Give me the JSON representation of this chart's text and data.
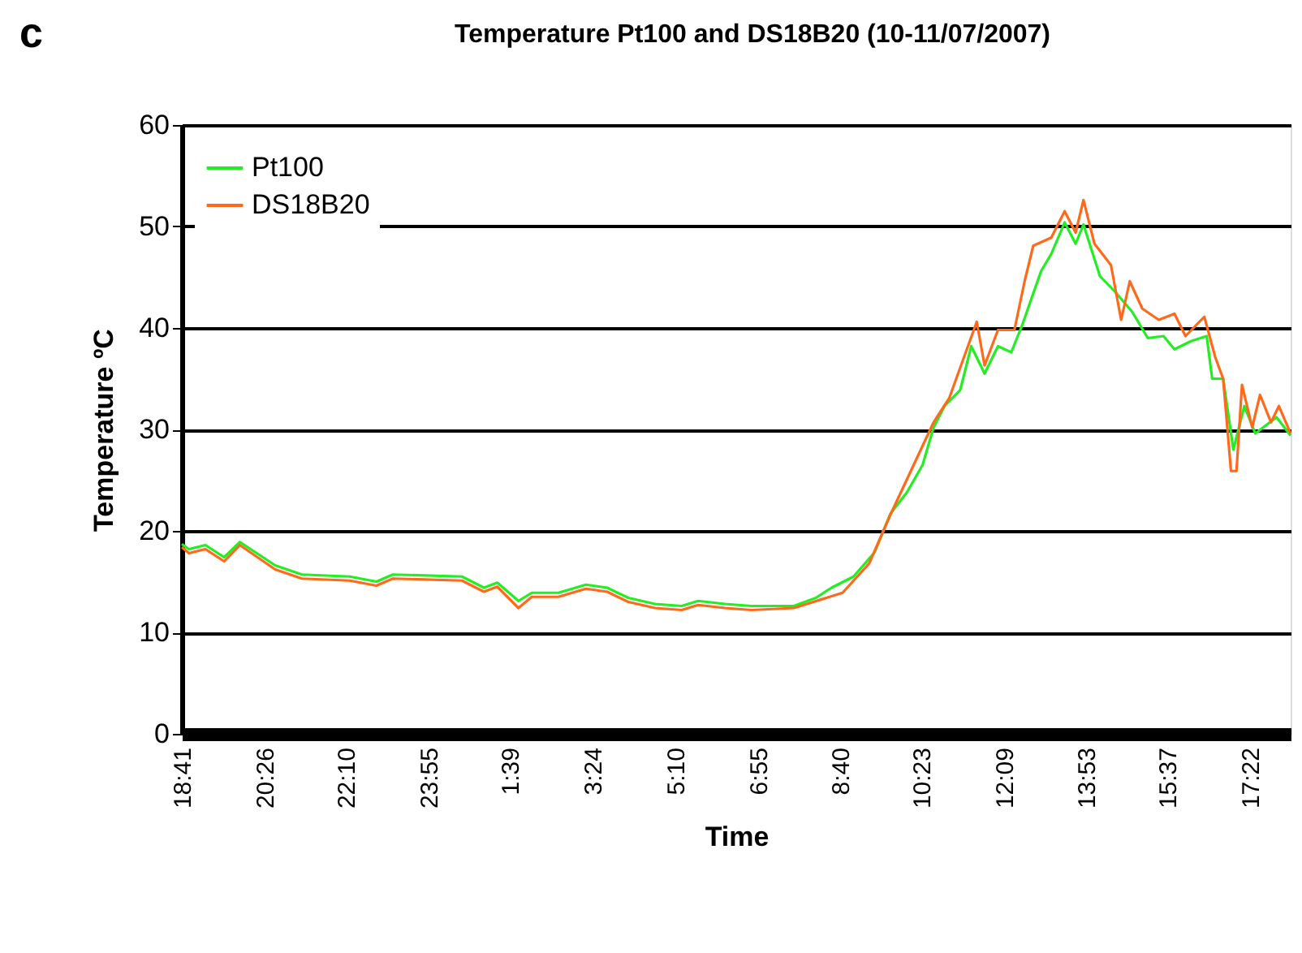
{
  "chart_data": {
    "type": "line",
    "title": "Temperature Pt100 and DS18B20 (10-11/07/2007)",
    "xlabel": "Time",
    "ylabel": "Temperature ºC",
    "annotations": [
      "c"
    ],
    "xlim": [
      "2007-07-10T18:41",
      "2007-07-11T18:14"
    ],
    "ylim": [
      0,
      60
    ],
    "yticks": [
      0,
      10,
      20,
      30,
      40,
      50,
      60
    ],
    "xticks": [
      {
        "value": "2007-07-10T18:41",
        "label": "18:41"
      },
      {
        "value": "2007-07-10T20:26",
        "label": "20:26"
      },
      {
        "value": "2007-07-10T22:10",
        "label": "22:10"
      },
      {
        "value": "2007-07-10T23:55",
        "label": "23:55"
      },
      {
        "value": "2007-07-11T01:39",
        "label": "1:39"
      },
      {
        "value": "2007-07-11T03:24",
        "label": "3:24"
      },
      {
        "value": "2007-07-11T05:10",
        "label": "5:10"
      },
      {
        "value": "2007-07-11T06:55",
        "label": "6:55"
      },
      {
        "value": "2007-07-11T08:40",
        "label": "8:40"
      },
      {
        "value": "2007-07-11T10:23",
        "label": "10:23"
      },
      {
        "value": "2007-07-11T12:09",
        "label": "12:09"
      },
      {
        "value": "2007-07-11T13:53",
        "label": "13:53"
      },
      {
        "value": "2007-07-11T15:37",
        "label": "15:37"
      },
      {
        "value": "2007-07-11T17:22",
        "label": "17:22"
      }
    ],
    "grid": "y",
    "legend": "top left",
    "marker": "none",
    "line_style": "solid",
    "series": [
      {
        "name": "Pt100",
        "color": "#22ee22",
        "x": [
          "2007-07-10T18:41",
          "2007-07-10T18:50",
          "2007-07-10T19:11",
          "2007-07-10T19:35",
          "2007-07-10T19:55",
          "2007-07-10T20:40",
          "2007-07-10T21:14",
          "2007-07-10T22:15",
          "2007-07-10T22:49",
          "2007-07-10T23:10",
          "2007-07-11T00:38",
          "2007-07-11T01:06",
          "2007-07-11T01:23",
          "2007-07-11T01:50",
          "2007-07-11T02:07",
          "2007-07-11T02:41",
          "2007-07-11T03:16",
          "2007-07-11T03:43",
          "2007-07-11T04:10",
          "2007-07-11T04:44",
          "2007-07-11T05:18",
          "2007-07-11T05:39",
          "2007-07-11T06:13",
          "2007-07-11T06:47",
          "2007-07-11T07:41",
          "2007-07-11T08:09",
          "2007-07-11T08:29",
          "2007-07-11T08:57",
          "2007-07-11T09:24",
          "2007-07-11T09:44",
          "2007-07-11T10:05",
          "2007-07-11T10:25",
          "2007-07-11T10:39",
          "2007-07-11T10:53",
          "2007-07-11T11:13",
          "2007-07-11T11:27",
          "2007-07-11T11:44",
          "2007-07-11T12:01",
          "2007-07-11T12:18",
          "2007-07-11T12:32",
          "2007-07-11T12:56",
          "2007-07-11T13:09",
          "2007-07-11T13:26",
          "2007-07-11T13:40",
          "2007-07-11T13:50",
          "2007-07-11T14:11",
          "2007-07-11T14:31",
          "2007-07-11T14:52",
          "2007-07-11T15:12",
          "2007-07-11T15:32",
          "2007-07-11T15:46",
          "2007-07-11T16:07",
          "2007-07-11T16:27",
          "2007-07-11T16:34",
          "2007-07-11T16:48",
          "2007-07-11T17:01",
          "2007-07-11T17:15",
          "2007-07-11T17:29",
          "2007-07-11T17:56",
          "2007-07-11T18:14"
        ],
        "values": [
          18.7,
          18.2,
          18.6,
          17.4,
          18.9,
          16.6,
          15.7,
          15.5,
          15.0,
          15.7,
          15.5,
          14.4,
          14.9,
          13.1,
          13.9,
          13.9,
          14.7,
          14.4,
          13.4,
          12.8,
          12.6,
          13.1,
          12.8,
          12.6,
          12.6,
          13.4,
          14.4,
          15.5,
          17.9,
          21.7,
          23.8,
          26.5,
          30.2,
          32.3,
          33.9,
          38.2,
          35.5,
          38.2,
          37.6,
          40.3,
          45.6,
          47.3,
          50.4,
          48.3,
          50.2,
          45.1,
          43.5,
          41.6,
          39.0,
          39.2,
          37.9,
          38.7,
          39.2,
          35.0,
          35.0,
          28.0,
          32.3,
          29.6,
          31.2,
          29.4
        ]
      },
      {
        "name": "DS18B20",
        "color": "#ff6a1a",
        "x": [
          "2007-07-10T18:41",
          "2007-07-10T18:50",
          "2007-07-10T19:11",
          "2007-07-10T19:35",
          "2007-07-10T19:55",
          "2007-07-10T20:40",
          "2007-07-10T21:14",
          "2007-07-10T22:15",
          "2007-07-10T22:49",
          "2007-07-10T23:10",
          "2007-07-11T00:38",
          "2007-07-11T01:06",
          "2007-07-11T01:23",
          "2007-07-11T01:50",
          "2007-07-11T02:07",
          "2007-07-11T02:41",
          "2007-07-11T03:16",
          "2007-07-11T03:43",
          "2007-07-11T04:10",
          "2007-07-11T04:44",
          "2007-07-11T05:18",
          "2007-07-11T05:39",
          "2007-07-11T06:13",
          "2007-07-11T06:47",
          "2007-07-11T07:41",
          "2007-07-11T08:43",
          "2007-07-11T09:17",
          "2007-07-11T09:44",
          "2007-07-11T10:39",
          "2007-07-11T10:59",
          "2007-07-11T11:20",
          "2007-07-11T11:34",
          "2007-07-11T11:44",
          "2007-07-11T12:01",
          "2007-07-11T12:22",
          "2007-07-11T12:35",
          "2007-07-11T12:46",
          "2007-07-11T13:09",
          "2007-07-11T13:26",
          "2007-07-11T13:40",
          "2007-07-11T13:50",
          "2007-07-11T14:04",
          "2007-07-11T14:25",
          "2007-07-11T14:38",
          "2007-07-11T14:49",
          "2007-07-11T15:05",
          "2007-07-11T15:26",
          "2007-07-11T15:46",
          "2007-07-11T16:00",
          "2007-07-11T16:24",
          "2007-07-11T16:38",
          "2007-07-11T16:48",
          "2007-07-11T16:58",
          "2007-07-11T17:05",
          "2007-07-11T17:12",
          "2007-07-11T17:25",
          "2007-07-11T17:35",
          "2007-07-11T17:49",
          "2007-07-11T17:59",
          "2007-07-11T18:14"
        ],
        "values": [
          18.4,
          17.8,
          18.2,
          17.0,
          18.6,
          16.2,
          15.3,
          15.1,
          14.6,
          15.3,
          15.1,
          14.0,
          14.5,
          12.4,
          13.5,
          13.5,
          14.3,
          14.0,
          13.0,
          12.4,
          12.2,
          12.7,
          12.4,
          12.2,
          12.4,
          13.9,
          16.8,
          21.6,
          30.7,
          33.1,
          37.6,
          40.6,
          36.3,
          39.8,
          39.8,
          44.6,
          48.1,
          48.9,
          51.5,
          49.4,
          52.6,
          48.3,
          46.2,
          40.8,
          44.6,
          41.9,
          40.8,
          41.4,
          39.2,
          41.1,
          37.1,
          35.0,
          25.9,
          25.9,
          34.4,
          30.2,
          33.4,
          30.7,
          32.3,
          29.6
        ]
      }
    ]
  }
}
